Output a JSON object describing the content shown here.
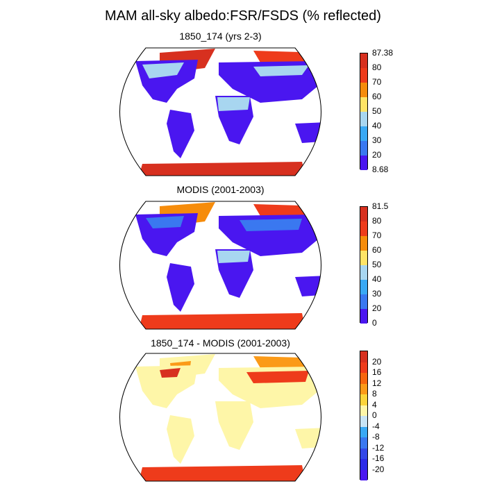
{
  "title": "MAM all-sky albedo:FSR/FSDS (% reflected)",
  "panels": [
    {
      "title": "1850_174 (yrs 2-3)",
      "colorbar": {
        "labels": [
          "87.38",
          "80",
          "70",
          "60",
          "50",
          "40",
          "30",
          "20",
          "8.68"
        ],
        "colors": [
          "#d7301f",
          "#ee3b1b",
          "#f68c0b",
          "#ffe466",
          "#a8d6f0",
          "#3aa9f4",
          "#3a78f0",
          "#4a16f0"
        ]
      }
    },
    {
      "title": "MODIS (2001-2003)",
      "colorbar": {
        "labels": [
          "81.5",
          "80",
          "70",
          "60",
          "50",
          "40",
          "30",
          "20",
          "0"
        ],
        "colors": [
          "#d7301f",
          "#ee3b1b",
          "#f68c0b",
          "#ffe466",
          "#a8d6f0",
          "#3aa9f4",
          "#3a78f0",
          "#4a16f0"
        ]
      }
    },
    {
      "title": "1850_174 - MODIS (2001-2003)",
      "colorbar": {
        "labels": [
          "20",
          "16",
          "12",
          "8",
          "4",
          "0",
          "-4",
          "-8",
          "-12",
          "-16",
          "-20"
        ],
        "colors": [
          "#d7301f",
          "#ee3b1b",
          "#f6660e",
          "#fb9a18",
          "#fbd43a",
          "#fef6a8",
          "#c8e4f5",
          "#3aa9f4",
          "#3a78f0",
          "#3348e8",
          "#2b2be8",
          "#4a16f0"
        ]
      }
    }
  ]
}
